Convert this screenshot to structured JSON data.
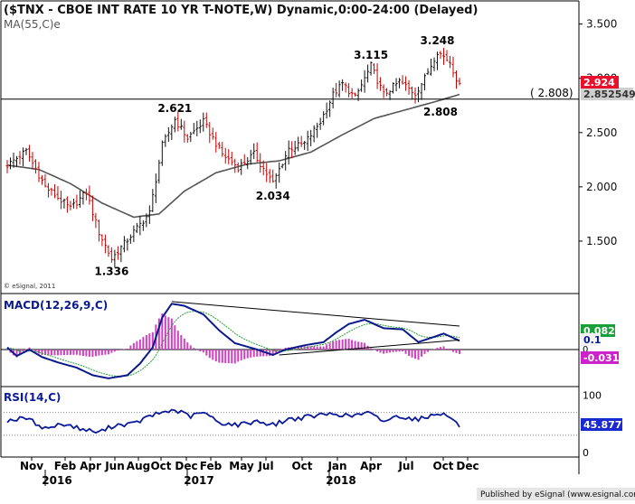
{
  "header": {
    "title": "($TNX - CBOE INT RATE 10 YR T-NOTE,W) Dynamic,0:00-24:00 (Delayed)",
    "ma_label": "MA(55,C)e",
    "watermark": "© eSignal, 2011"
  },
  "footer": {
    "publisher": "Published by eSignal (www.esignal.com)"
  },
  "colors": {
    "up_bar": "#111111",
    "down_bar": "#cc0000",
    "ma_line": "#555555",
    "macd_line": "#0a1a8a",
    "signal_line": "#2a9d3a",
    "histogram": "#d040c0",
    "rsi_line": "#0a1a9a",
    "price_badge": "#e8112d",
    "macd_badge": "#1aa03a",
    "signal_badge": "#cc22cc",
    "rsi_badge": "#1a2ad0"
  },
  "chart_data": [
    {
      "type": "candlestick",
      "panel": "price",
      "symbol": "$TNX",
      "interval": "weekly",
      "ylim": [
        1.05,
        3.68
      ],
      "yticks": [
        1.5,
        2.0,
        2.5,
        3.0,
        3.5
      ],
      "ytick_labels": [
        "1.500",
        "2.000",
        "2.500",
        "3.000",
        "3.500"
      ],
      "x_tick_labels": [
        "Nov",
        "Feb",
        "Apr",
        "Jun",
        "Aug",
        "Oct",
        "Dec",
        "Feb",
        "May",
        "Jul",
        "Oct",
        "Jan",
        "Apr",
        "Jul",
        "Oct",
        "Dec"
      ],
      "year_labels": [
        "2016",
        "2017",
        "2018"
      ],
      "price_anchors": [
        {
          "week": 0,
          "close": 2.2
        },
        {
          "week": 6,
          "close": 2.33
        },
        {
          "week": 12,
          "close": 2.0
        },
        {
          "week": 20,
          "close": 1.8
        },
        {
          "week": 25,
          "close": 1.95
        },
        {
          "week": 29,
          "close": 1.58
        },
        {
          "week": 33,
          "close": 1.336
        },
        {
          "week": 39,
          "close": 1.55
        },
        {
          "week": 45,
          "close": 1.76
        },
        {
          "week": 49,
          "close": 2.38
        },
        {
          "week": 53,
          "close": 2.621
        },
        {
          "week": 57,
          "close": 2.45
        },
        {
          "week": 62,
          "close": 2.6
        },
        {
          "week": 68,
          "close": 2.3
        },
        {
          "week": 73,
          "close": 2.18
        },
        {
          "week": 78,
          "close": 2.3
        },
        {
          "week": 84,
          "close": 2.034
        },
        {
          "week": 89,
          "close": 2.35
        },
        {
          "week": 94,
          "close": 2.4
        },
        {
          "week": 99,
          "close": 2.6
        },
        {
          "week": 103,
          "close": 2.85
        },
        {
          "week": 106,
          "close": 2.95
        },
        {
          "week": 110,
          "close": 2.82
        },
        {
          "week": 115,
          "close": 3.115
        },
        {
          "week": 119,
          "close": 2.85
        },
        {
          "week": 124,
          "close": 2.97
        },
        {
          "week": 129,
          "close": 2.86
        },
        {
          "week": 132,
          "close": 3.0
        },
        {
          "week": 136,
          "close": 3.248
        },
        {
          "week": 140,
          "close": 3.15
        },
        {
          "week": 143,
          "close": 2.924
        }
      ],
      "ma": {
        "name": "MA(55,C)e",
        "points": [
          {
            "week": 0,
            "value": 2.2
          },
          {
            "week": 10,
            "value": 2.16
          },
          {
            "week": 20,
            "value": 2.03
          },
          {
            "week": 30,
            "value": 1.85
          },
          {
            "week": 40,
            "value": 1.72
          },
          {
            "week": 48,
            "value": 1.75
          },
          {
            "week": 56,
            "value": 1.96
          },
          {
            "week": 66,
            "value": 2.13
          },
          {
            "week": 76,
            "value": 2.21
          },
          {
            "week": 86,
            "value": 2.24
          },
          {
            "week": 96,
            "value": 2.32
          },
          {
            "week": 106,
            "value": 2.48
          },
          {
            "week": 116,
            "value": 2.63
          },
          {
            "week": 126,
            "value": 2.71
          },
          {
            "week": 136,
            "value": 2.79
          },
          {
            "week": 143,
            "value": 2.852
          }
        ]
      },
      "annotations": [
        {
          "text": "1.336",
          "week": 33,
          "value": 1.336,
          "position": "below"
        },
        {
          "text": "2.621",
          "week": 53,
          "value": 2.621,
          "position": "above"
        },
        {
          "text": "2.034",
          "week": 84,
          "value": 2.034,
          "position": "below"
        },
        {
          "text": "3.115",
          "week": 115,
          "value": 3.115,
          "position": "above"
        },
        {
          "text": "3.248",
          "week": 136,
          "value": 3.248,
          "position": "above"
        },
        {
          "text": "2.808",
          "week": 137,
          "value": 2.808,
          "position": "below"
        }
      ],
      "horizontal_line": {
        "value": 2.808,
        "label": "( 2.808)"
      },
      "badges": {
        "last_price": "2.924",
        "ma_value": "2.852549"
      }
    },
    {
      "type": "macd",
      "panel": "macd",
      "title": "MACD(12,26,9,C)",
      "ylim": [
        -0.33,
        0.5
      ],
      "zero_label": "0",
      "macd_anchors": [
        {
          "week": 0,
          "value": 0.02
        },
        {
          "week": 3,
          "value": -0.06
        },
        {
          "week": 7,
          "value": 0.0
        },
        {
          "week": 11,
          "value": -0.07
        },
        {
          "week": 16,
          "value": -0.12
        },
        {
          "week": 22,
          "value": -0.17
        },
        {
          "week": 27,
          "value": -0.24
        },
        {
          "week": 32,
          "value": -0.27
        },
        {
          "week": 38,
          "value": -0.24
        },
        {
          "week": 42,
          "value": -0.13
        },
        {
          "week": 46,
          "value": 0.02
        },
        {
          "week": 49,
          "value": 0.3
        },
        {
          "week": 52,
          "value": 0.43
        },
        {
          "week": 56,
          "value": 0.41
        },
        {
          "week": 62,
          "value": 0.33
        },
        {
          "week": 67,
          "value": 0.18
        },
        {
          "week": 72,
          "value": 0.06
        },
        {
          "week": 78,
          "value": 0.01
        },
        {
          "week": 84,
          "value": -0.05
        },
        {
          "week": 88,
          "value": -0.0
        },
        {
          "week": 94,
          "value": 0.04
        },
        {
          "week": 100,
          "value": 0.07
        },
        {
          "week": 104,
          "value": 0.16
        },
        {
          "week": 108,
          "value": 0.24
        },
        {
          "week": 113,
          "value": 0.28
        },
        {
          "week": 119,
          "value": 0.2
        },
        {
          "week": 125,
          "value": 0.19
        },
        {
          "week": 130,
          "value": 0.07
        },
        {
          "week": 134,
          "value": 0.11
        },
        {
          "week": 138,
          "value": 0.15
        },
        {
          "week": 143,
          "value": 0.082
        }
      ],
      "trendlines": [
        {
          "from": {
            "week": 52,
            "value": 0.45
          },
          "to": {
            "week": 143,
            "value": 0.22
          }
        },
        {
          "from": {
            "week": 86,
            "value": -0.05
          },
          "to": {
            "week": 143,
            "value": 0.09
          }
        }
      ],
      "badges": {
        "macd": "0.082",
        "signal": "0.1",
        "histogram": "-0.031"
      }
    },
    {
      "type": "line",
      "panel": "rsi",
      "title": "RSI(14,C)",
      "ylim": [
        -5,
        112
      ],
      "levels": [
        30,
        70
      ],
      "ytick_labels": [
        "100",
        "0"
      ],
      "rsi_anchors": [
        {
          "week": 0,
          "value": 56
        },
        {
          "week": 6,
          "value": 60
        },
        {
          "week": 12,
          "value": 42
        },
        {
          "week": 18,
          "value": 50
        },
        {
          "week": 24,
          "value": 40
        },
        {
          "week": 29,
          "value": 35
        },
        {
          "week": 34,
          "value": 48
        },
        {
          "week": 40,
          "value": 50
        },
        {
          "week": 45,
          "value": 63
        },
        {
          "week": 49,
          "value": 70
        },
        {
          "week": 53,
          "value": 74
        },
        {
          "week": 58,
          "value": 63
        },
        {
          "week": 62,
          "value": 70
        },
        {
          "week": 67,
          "value": 52
        },
        {
          "week": 73,
          "value": 48
        },
        {
          "week": 79,
          "value": 55
        },
        {
          "week": 84,
          "value": 48
        },
        {
          "week": 89,
          "value": 58
        },
        {
          "week": 95,
          "value": 62
        },
        {
          "week": 100,
          "value": 66
        },
        {
          "week": 104,
          "value": 68
        },
        {
          "week": 108,
          "value": 63
        },
        {
          "week": 114,
          "value": 69
        },
        {
          "week": 119,
          "value": 55
        },
        {
          "week": 124,
          "value": 64
        },
        {
          "week": 129,
          "value": 58
        },
        {
          "week": 132,
          "value": 60
        },
        {
          "week": 136,
          "value": 70
        },
        {
          "week": 140,
          "value": 62
        },
        {
          "week": 143,
          "value": 45.877
        }
      ],
      "badges": {
        "rsi": "45.877"
      }
    }
  ]
}
